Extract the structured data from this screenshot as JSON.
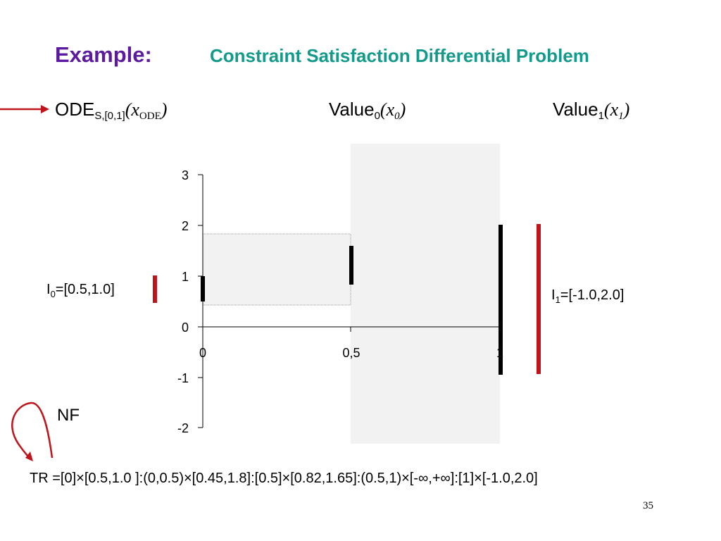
{
  "header": {
    "example_label": "Example:",
    "title": "Constraint Satisfaction Differential Problem"
  },
  "labels": {
    "ode_main": "ODE",
    "ode_sub": "S,[0,1]",
    "ode_open": "(",
    "ode_var": "x",
    "ode_var_sub": "ODE",
    "ode_close": ")",
    "value0_main": "Value",
    "value0_sub": "0",
    "value0_open": "(",
    "value0_var": "x",
    "value0_var_sub": "0",
    "value0_close": ")",
    "value1_main": "Value",
    "value1_sub": "1",
    "value1_open": "(",
    "value1_var": "x",
    "value1_var_sub": "1",
    "value1_close": ")",
    "i0_main": "I",
    "i0_sub": "0",
    "i0_rest": "=[0.5,1.0]",
    "i1_main": "I",
    "i1_sub": "1",
    "i1_rest": "=[-1.0,2.0]",
    "nf": "NF",
    "tr": "TR =[0]×[0.5,1.0 ]:(0,0.5)×[0.45,1.8]:[0.5]×[0.82,1.65]:(0.5,1)×[-∞,+∞]:[1]×[-1.0,2.0]",
    "slide_number": "35"
  },
  "chart_data": {
    "type": "diagram",
    "x_ticks": [
      "0",
      "0,5",
      "1"
    ],
    "y_ticks": [
      "3",
      "2",
      "1",
      "0",
      "-1",
      "-2"
    ],
    "ylim": [
      -2,
      3
    ],
    "xlim": [
      0,
      1
    ],
    "intervals": [
      {
        "x": 0,
        "low": 0.5,
        "high": 1.0
      },
      {
        "x": 0.5,
        "low": 0.82,
        "high": 1.65
      },
      {
        "x": 1,
        "low": -1.0,
        "high": 2.0
      }
    ],
    "boxes": [
      {
        "x_from": 0,
        "x_to": 0.5,
        "low": 0.45,
        "high": 1.8
      },
      {
        "x_from": 0.5,
        "x_to": 1,
        "low": "-∞",
        "high": "+∞"
      }
    ],
    "domains": [
      {
        "variable": "x0",
        "low": 0.5,
        "high": 1.0
      },
      {
        "variable": "x1",
        "low": -1.0,
        "high": 2.0
      }
    ],
    "colors": {
      "interval": "#000000",
      "domain": "#c0141c",
      "box": "#f2f2f2",
      "arrow": "#c0141c"
    }
  }
}
